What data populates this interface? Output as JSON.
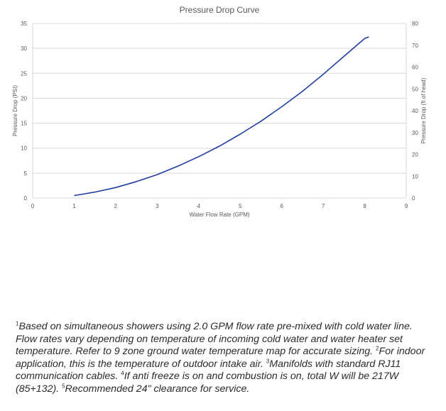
{
  "chart_data": {
    "type": "line",
    "title": "Pressure Drop Curve",
    "xlabel": "Water Flow Rate (GPM)",
    "ylabel": "Pressure Drop (PSI)",
    "y2label": "Pressure Drop (ft of head)",
    "xlim": [
      0,
      9
    ],
    "ylim": [
      0,
      35
    ],
    "y2lim": [
      0,
      80
    ],
    "xticks": [
      "0",
      "1",
      "2",
      "3",
      "4",
      "5",
      "6",
      "7",
      "8",
      "9"
    ],
    "yticks": [
      "0",
      "5",
      "10",
      "15",
      "20",
      "25",
      "30",
      "35"
    ],
    "y2ticks": [
      "0",
      "10",
      "20",
      "30",
      "40",
      "50",
      "60",
      "70",
      "80"
    ],
    "grid": "horizontal",
    "legend": "none",
    "line_color": "#1f3fa0",
    "series": [
      {
        "x": [
          1,
          1.5,
          2,
          2.5,
          3,
          3.5,
          4,
          4.5,
          5,
          5.5,
          6,
          6.5,
          7,
          7.5,
          8,
          8.1
        ],
        "values": [
          0.5,
          1.2,
          2.1,
          3.3,
          4.7,
          6.4,
          8.3,
          10.4,
          12.8,
          15.4,
          18.3,
          21.4,
          24.8,
          28.4,
          32.0,
          32.3
        ]
      }
    ]
  },
  "footnote": [
    {
      "sup": "1",
      "text": "Based on simultaneous showers using 2.0 GPM flow rate pre-mixed with cold water line. Flow rates vary depending on temperature of incoming cold water and water heater set temperature. Refer to 9 zone ground water temperature map for accurate sizing. "
    },
    {
      "sup": "2",
      "text": "For indoor application, this is the temperature of outdoor intake air. "
    },
    {
      "sup": "3",
      "text": "Manifolds with standard RJ11 communication cables. "
    },
    {
      "sup": "4",
      "text": "If anti freeze is on and combustion is on, total W will be 217W (85+132). "
    },
    {
      "sup": "5",
      "text": "Recommended 24\" clearance for service."
    }
  ]
}
